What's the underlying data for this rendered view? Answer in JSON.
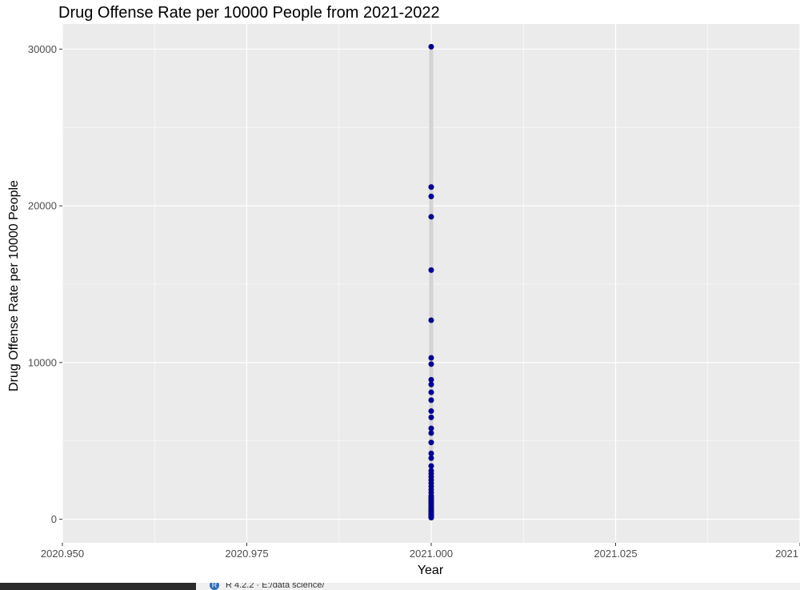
{
  "chart_data": {
    "type": "scatter",
    "title": "Drug Offense Rate per 10000 People from 2021-2022",
    "xlabel": "Year",
    "ylabel": "Drug Offense Rate per 10000 People",
    "xlim": [
      2020.95,
      2021.05
    ],
    "ylim": [
      -1500,
      31600
    ],
    "x_ticks": [
      2020.95,
      2020.975,
      2021.0,
      2021.025,
      2021.05
    ],
    "x_tick_labels": [
      "2020.950",
      "2020.975",
      "2021.000",
      "2021.025",
      "2021"
    ],
    "y_ticks": [
      0,
      10000,
      20000,
      30000
    ],
    "y_tick_labels": [
      "0",
      "10000",
      "20000",
      "30000"
    ],
    "grid": true,
    "band": {
      "x": 2021.0,
      "y_range": [
        100,
        30150
      ]
    },
    "series": [
      {
        "color": "#00008b",
        "x": [
          2021.0,
          2021.0,
          2021.0,
          2021.0,
          2021.0,
          2021.0,
          2021.0,
          2021.0,
          2021.0,
          2021.0,
          2021.0,
          2021.0,
          2021.0,
          2021.0,
          2021.0,
          2021.0,
          2021.0,
          2021.0,
          2021.0,
          2021.0,
          2021.0,
          2021.0,
          2021.0,
          2021.0,
          2021.0,
          2021.0,
          2021.0,
          2021.0,
          2021.0,
          2021.0,
          2021.0,
          2021.0,
          2021.0,
          2021.0,
          2021.0,
          2021.0,
          2021.0,
          2021.0,
          2021.0,
          2021.0,
          2021.0,
          2021.0,
          2021.0,
          2021.0,
          2021.0,
          2021.0,
          2021.0,
          2021.0,
          2021.0,
          2021.0
        ],
        "y": [
          30150,
          21200,
          20600,
          19300,
          15900,
          12700,
          10300,
          9900,
          8900,
          8600,
          8100,
          7600,
          6900,
          6500,
          5800,
          5500,
          4900,
          4200,
          3900,
          3400,
          3100,
          2900,
          2700,
          2500,
          2300,
          2100,
          1900,
          1700,
          1500,
          1400,
          1300,
          1200,
          1100,
          1000,
          900,
          800,
          750,
          700,
          650,
          600,
          550,
          500,
          450,
          400,
          350,
          300,
          250,
          200,
          150,
          100
        ]
      }
    ]
  },
  "statusbar": {
    "r_icon": "R",
    "text": "R 4.2.2 · E:/data science/"
  }
}
